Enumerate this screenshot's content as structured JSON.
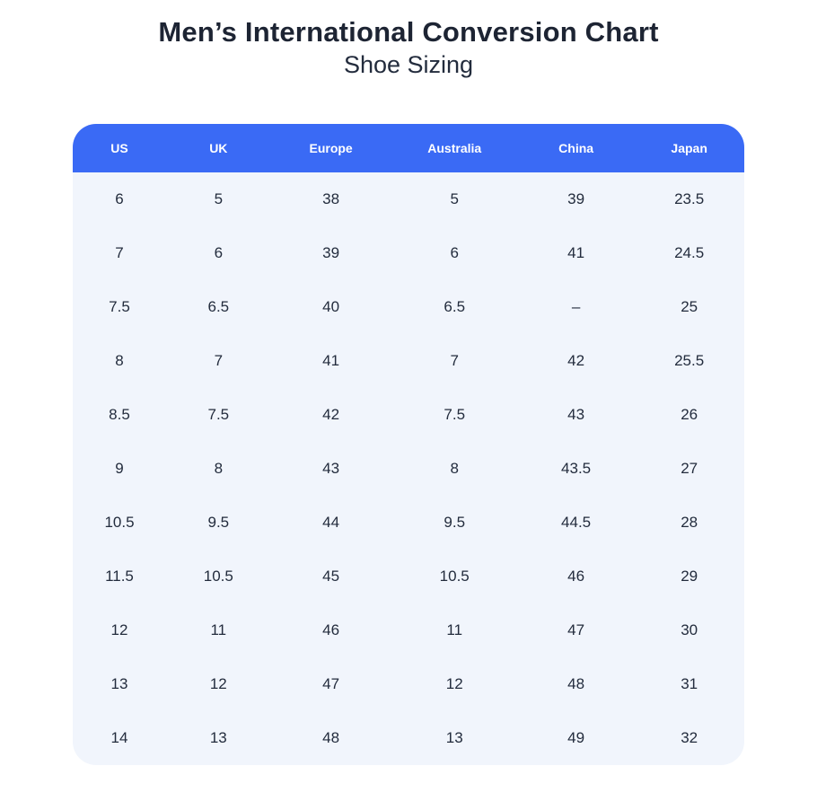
{
  "page": {
    "title": "Men’s International Conversion Chart",
    "subtitle": "Shoe Sizing"
  },
  "colors": {
    "header_bg": "#3a6af5",
    "header_text": "#ffffff",
    "body_bg": "#f1f5fc",
    "body_text": "#232c3d",
    "title_text": "#1d2433",
    "page_bg": "#ffffff"
  },
  "chart_data": {
    "type": "table",
    "title": "Men’s International Conversion Chart",
    "subtitle": "Shoe Sizing",
    "columns": [
      "US",
      "UK",
      "Europe",
      "Australia",
      "China",
      "Japan"
    ],
    "rows": [
      [
        "6",
        "5",
        "38",
        "5",
        "39",
        "23.5"
      ],
      [
        "7",
        "6",
        "39",
        "6",
        "41",
        "24.5"
      ],
      [
        "7.5",
        "6.5",
        "40",
        "6.5",
        "–",
        "25"
      ],
      [
        "8",
        "7",
        "41",
        "7",
        "42",
        "25.5"
      ],
      [
        "8.5",
        "7.5",
        "42",
        "7.5",
        "43",
        "26"
      ],
      [
        "9",
        "8",
        "43",
        "8",
        "43.5",
        "27"
      ],
      [
        "10.5",
        "9.5",
        "44",
        "9.5",
        "44.5",
        "28"
      ],
      [
        "11.5",
        "10.5",
        "45",
        "10.5",
        "46",
        "29"
      ],
      [
        "12",
        "11",
        "46",
        "11",
        "47",
        "30"
      ],
      [
        "13",
        "12",
        "47",
        "12",
        "48",
        "31"
      ],
      [
        "14",
        "13",
        "48",
        "13",
        "49",
        "32"
      ]
    ],
    "layout": {
      "header_position": "top",
      "grid": false,
      "corner_radius_px": 26
    }
  }
}
